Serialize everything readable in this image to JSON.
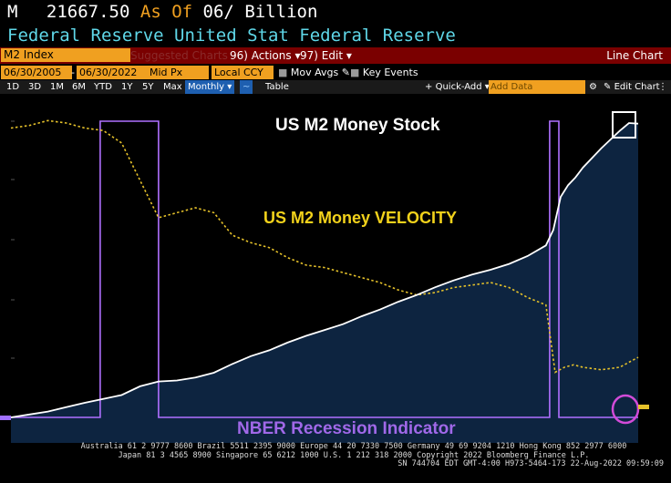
{
  "header": {
    "ticker": "M",
    "price": "21667.50",
    "as_of_label": "As Of",
    "date": "06/",
    "unit": "Billion",
    "subtitle": "Federal Reserve United Stat Federal Reserve"
  },
  "toolbar1": {
    "security": "M2 Index",
    "suggested": "Suggested Charts",
    "actions_num": "96)",
    "actions_label": "Actions",
    "edit_num": "97)",
    "edit_label": "Edit",
    "chart_type": "Line Chart"
  },
  "toolbar2": {
    "start_date": "06/30/2005",
    "end_date": "06/30/2022",
    "field": "Mid Px",
    "currency": "Local CCY",
    "mov_avgs": "Mov Avgs",
    "key_events": "Key Events"
  },
  "toolbar3": {
    "periods": [
      "1D",
      "3D",
      "1M",
      "6M",
      "YTD",
      "1Y",
      "5Y",
      "Max"
    ],
    "frequency": "Monthly",
    "table_label": "Table",
    "quick_add": "Quick-Add",
    "add_data_placeholder": "Add Data",
    "edit_chart": "Edit Chart"
  },
  "annotations": {
    "m2_stock": "US M2 Money Stock",
    "m2_velocity": "US M2 Money VELOCITY",
    "nber": "NBER Recession Indicator"
  },
  "colors": {
    "m2_stock": "#ffffff",
    "m2_velocity": "#e6c22a",
    "recession": "#b070ff",
    "area_fill": "#0d2440",
    "annotation_velocity": "#f2d21b",
    "annotation_nber": "#a068e8"
  },
  "chart_data": {
    "type": "line",
    "x_range": [
      2005.5,
      2022.5
    ],
    "series": [
      {
        "name": "US M2 Money Stock",
        "x": [
          2005.5,
          2006.0,
          2006.5,
          2007.0,
          2007.5,
          2008.0,
          2008.5,
          2009.0,
          2009.5,
          2010.0,
          2010.5,
          2011.0,
          2011.5,
          2012.0,
          2012.5,
          2013.0,
          2013.5,
          2014.0,
          2014.5,
          2015.0,
          2015.5,
          2016.0,
          2016.5,
          2017.0,
          2017.5,
          2018.0,
          2018.5,
          2019.0,
          2019.5,
          2020.0,
          2020.2,
          2020.4,
          2020.6,
          2020.8,
          2021.0,
          2021.5,
          2022.0,
          2022.25,
          2022.5
        ],
        "y": [
          6550,
          6700,
          6850,
          7080,
          7300,
          7500,
          7700,
          8150,
          8400,
          8450,
          8600,
          8850,
          9300,
          9700,
          10000,
          10400,
          10750,
          11050,
          11350,
          11750,
          12100,
          12500,
          12850,
          13250,
          13600,
          13900,
          14150,
          14450,
          14850,
          15400,
          16200,
          17900,
          18500,
          18900,
          19400,
          20400,
          21300,
          21700,
          21667.5
        ]
      },
      {
        "name": "US M2 Money VELOCITY",
        "x": [
          2005.5,
          2006.0,
          2006.5,
          2007.0,
          2007.5,
          2008.0,
          2008.5,
          2009.0,
          2009.5,
          2010.0,
          2010.5,
          2011.0,
          2011.5,
          2012.0,
          2012.5,
          2013.0,
          2013.5,
          2014.0,
          2014.5,
          2015.0,
          2015.5,
          2016.0,
          2016.5,
          2017.0,
          2017.5,
          2018.0,
          2018.5,
          2019.0,
          2019.5,
          2020.0,
          2020.25,
          2020.5,
          2020.75,
          2021.0,
          2021.5,
          2022.0,
          2022.25,
          2022.5
        ],
        "y": [
          2.08,
          2.09,
          2.11,
          2.1,
          2.08,
          2.07,
          2.02,
          1.87,
          1.72,
          1.74,
          1.76,
          1.74,
          1.65,
          1.62,
          1.6,
          1.56,
          1.53,
          1.52,
          1.5,
          1.48,
          1.46,
          1.43,
          1.41,
          1.42,
          1.44,
          1.45,
          1.46,
          1.44,
          1.4,
          1.37,
          1.1,
          1.12,
          1.13,
          1.12,
          1.11,
          1.12,
          1.14,
          1.16
        ]
      },
      {
        "name": "NBER Recession Indicator",
        "x": [
          2005.5,
          2007.92,
          2007.92,
          2009.5,
          2009.5,
          2020.1,
          2020.1,
          2020.35,
          2020.35,
          2022.5
        ],
        "y": [
          0,
          0,
          1,
          1,
          0,
          0,
          1,
          1,
          0,
          0
        ]
      }
    ]
  },
  "footer": {
    "line1": "Australia 61 2 9777 8600 Brazil 5511 2395 9000 Europe 44 20 7330 7500 Germany 49 69 9204 1210 Hong Kong 852 2977 6000",
    "line2": "Japan 81 3 4565 8900      Singapore 65 6212 1000      U.S. 1 212 318 2000      Copyright 2022 Bloomberg Finance L.P.",
    "line3": "SN 744704 EDT  GMT-4:00 H973-5464-173 22-Aug-2022 09:59:09"
  }
}
